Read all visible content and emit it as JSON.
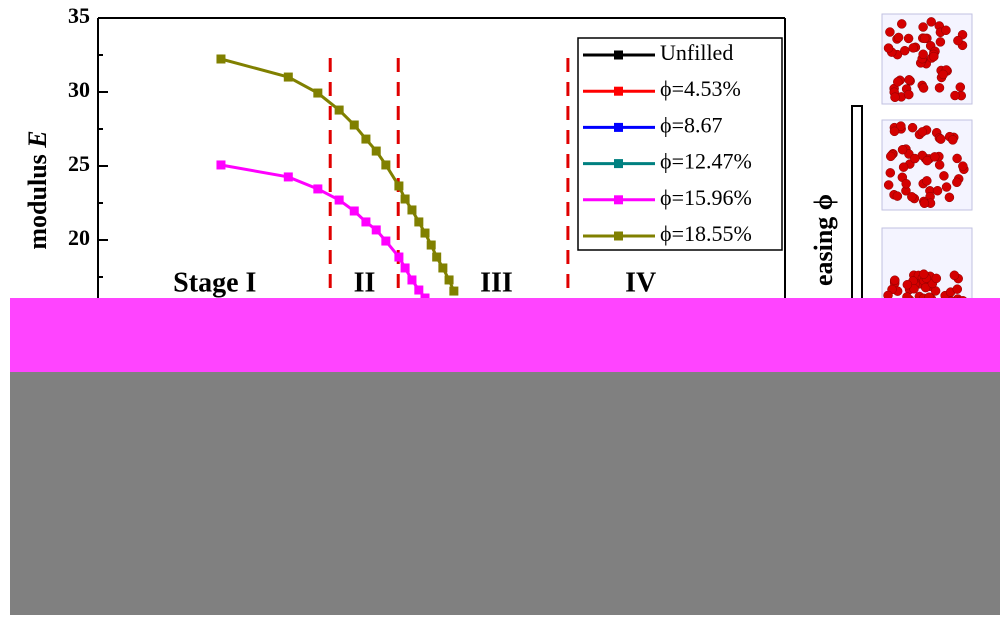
{
  "chart_data": {
    "type": "line",
    "y_label": "modulus",
    "y_label_var": "E",
    "ylim": [
      14,
      35.7
    ],
    "yticks": [
      20,
      25,
      30,
      35
    ],
    "xlim": [
      0,
      100
    ],
    "series": [
      {
        "name": "Unfilled",
        "color": "#000000",
        "x": [],
        "values": []
      },
      {
        "name": "ϕ=4.53%",
        "color": "#ff0000",
        "x": [],
        "values": []
      },
      {
        "name": "ϕ=8.67",
        "color": "#0000ff",
        "x": [],
        "values": []
      },
      {
        "name": "ϕ=12.47%",
        "color": "#008080",
        "x": [],
        "values": []
      },
      {
        "name": "ϕ=15.96%",
        "color": "#ff00ff",
        "x": [
          17.9,
          27.7,
          32.0,
          35.1,
          37.3,
          39.0,
          40.5,
          41.9,
          43.8,
          44.7,
          45.7,
          46.7,
          47.6
        ],
        "values": [
          25.07,
          24.26,
          23.45,
          22.7,
          21.96,
          21.22,
          20.68,
          19.93,
          18.85,
          18.11,
          17.3,
          16.62,
          16.08
        ]
      },
      {
        "name": "ϕ=18.55%",
        "color": "#808000",
        "x": [
          17.9,
          27.7,
          32.0,
          35.1,
          37.3,
          39.0,
          40.5,
          41.9,
          43.8,
          44.7,
          45.7,
          46.7,
          47.6,
          48.5,
          49.3,
          50.2,
          51.1,
          51.8
        ],
        "values": [
          32.23,
          31.01,
          29.93,
          28.78,
          27.77,
          26.82,
          26.01,
          25.07,
          23.65,
          22.77,
          22.03,
          21.22,
          20.47,
          19.66,
          18.85,
          18.11,
          17.3,
          16.55
        ]
      }
    ],
    "stage_boundaries": [
      33.8,
      43.7,
      68.4
    ],
    "stages": [
      {
        "label": "Stage I",
        "x": 17
      },
      {
        "label": "II",
        "x": 38.8
      },
      {
        "label": "III",
        "x": 58
      },
      {
        "label": "IV",
        "x": 79
      }
    ],
    "side_label": "easing ϕ"
  }
}
